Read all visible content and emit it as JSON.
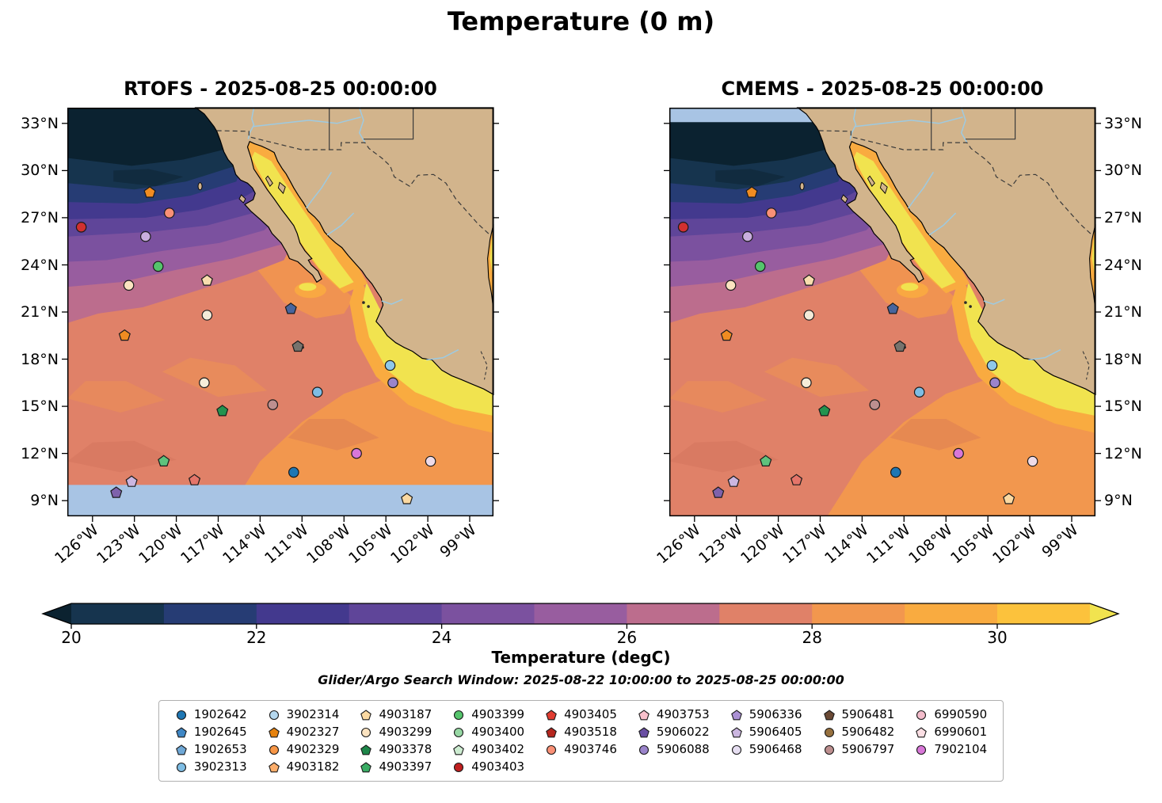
{
  "title": "Temperature (0 m)",
  "subtitle": "Glider/Argo Search Window: 2025-08-22 10:00:00 to 2025-08-25 00:00:00",
  "panels": [
    {
      "title": "RTOFS - 2025-08-25 00:00:00",
      "model": "RTOFS",
      "no_data_band": "bottom"
    },
    {
      "title": "CMEMS - 2025-08-25 00:00:00",
      "model": "CMEMS",
      "no_data_band": "top-left"
    }
  ],
  "axes": {
    "lat_ticks": [
      {
        "value": 33,
        "label": "33°N"
      },
      {
        "value": 30,
        "label": "30°N"
      },
      {
        "value": 27,
        "label": "27°N"
      },
      {
        "value": 24,
        "label": "24°N"
      },
      {
        "value": 21,
        "label": "21°N"
      },
      {
        "value": 18,
        "label": "18°N"
      },
      {
        "value": 15,
        "label": "15°N"
      },
      {
        "value": 12,
        "label": "12°N"
      },
      {
        "value": 9,
        "label": "9°N"
      }
    ],
    "lon_ticks": [
      {
        "value": -126,
        "label": "126°W"
      },
      {
        "value": -123,
        "label": "123°W"
      },
      {
        "value": -120,
        "label": "120°W"
      },
      {
        "value": -117,
        "label": "117°W"
      },
      {
        "value": -114,
        "label": "114°W"
      },
      {
        "value": -111,
        "label": "111°W"
      },
      {
        "value": -108,
        "label": "108°W"
      },
      {
        "value": -105,
        "label": "105°W"
      },
      {
        "value": -102,
        "label": "102°W"
      },
      {
        "value": -99,
        "label": "99°W"
      }
    ]
  },
  "chart_data": {
    "type": "heatmap",
    "title": "Temperature (0 m)",
    "lon_range": [
      -127.8,
      -97.3
    ],
    "lat_range": [
      8,
      34
    ],
    "colorbar": {
      "label": "Temperature (degC)",
      "min": 20,
      "max": 31,
      "tick_values": [
        20,
        22,
        24,
        26,
        28,
        30
      ],
      "band_colors": [
        "#0b2230",
        "#16344e",
        "#263c74",
        "#43398e",
        "#5f4599",
        "#7b519f",
        "#985d9f",
        "#bc6d8d",
        "#e08168",
        "#f2974e",
        "#f9ab40",
        "#fcc23c",
        "#f1e34f"
      ]
    },
    "markers": [
      {
        "lon": -126.8,
        "lat": 26.4,
        "shape": "circle",
        "color": "#d13030"
      },
      {
        "lon": -121.9,
        "lat": 28.6,
        "shape": "pentagon",
        "color": "#f08c21"
      },
      {
        "lon": -120.5,
        "lat": 27.3,
        "shape": "circle",
        "color": "#fa9076"
      },
      {
        "lon": -122.2,
        "lat": 25.8,
        "shape": "circle",
        "color": "#c9aede"
      },
      {
        "lon": -121.3,
        "lat": 23.9,
        "shape": "circle",
        "color": "#55c46c"
      },
      {
        "lon": -123.4,
        "lat": 22.7,
        "shape": "circle",
        "color": "#fbe3c0"
      },
      {
        "lon": -117.8,
        "lat": 23.0,
        "shape": "pentagon",
        "color": "#f8ddae"
      },
      {
        "lon": -117.8,
        "lat": 20.8,
        "shape": "circle",
        "color": "#f3ead8"
      },
      {
        "lon": -111.8,
        "lat": 21.2,
        "shape": "pentagon",
        "color": "#47659d"
      },
      {
        "lon": -123.7,
        "lat": 19.5,
        "shape": "pentagon",
        "color": "#f08c21"
      },
      {
        "lon": -111.3,
        "lat": 18.8,
        "shape": "pentagon",
        "color": "#77736d"
      },
      {
        "lon": -104.7,
        "lat": 17.6,
        "shape": "circle",
        "color": "#8fc8ea"
      },
      {
        "lon": -118.0,
        "lat": 16.5,
        "shape": "circle",
        "color": "#f6edd9"
      },
      {
        "lon": -104.5,
        "lat": 16.5,
        "shape": "circle",
        "color": "#9b84cb"
      },
      {
        "lon": -109.9,
        "lat": 15.9,
        "shape": "circle",
        "color": "#7ebde4"
      },
      {
        "lon": -113.1,
        "lat": 15.1,
        "shape": "circle",
        "color": "#bd8f8f"
      },
      {
        "lon": -116.7,
        "lat": 14.7,
        "shape": "pentagon",
        "color": "#23934f"
      },
      {
        "lon": -107.1,
        "lat": 12.0,
        "shape": "circle",
        "color": "#d877d8"
      },
      {
        "lon": -101.8,
        "lat": 11.5,
        "shape": "circle",
        "color": "#eedbe8"
      },
      {
        "lon": -120.9,
        "lat": 11.5,
        "shape": "pentagon",
        "color": "#5ec27d"
      },
      {
        "lon": -111.6,
        "lat": 10.8,
        "shape": "circle",
        "color": "#1f77b4"
      },
      {
        "lon": -118.7,
        "lat": 10.3,
        "shape": "pentagon",
        "color": "#e5756a"
      },
      {
        "lon": -123.2,
        "lat": 10.2,
        "shape": "pentagon",
        "color": "#cbb6e0"
      },
      {
        "lon": -124.3,
        "lat": 9.5,
        "shape": "pentagon",
        "color": "#7e62ab"
      },
      {
        "lon": -103.5,
        "lat": 9.1,
        "shape": "pentagon",
        "color": "#fbd9a2"
      }
    ]
  },
  "legend": {
    "columns": [
      [
        {
          "id": "1902642",
          "shape": "circle",
          "color": "#1f77b4"
        },
        {
          "id": "1902645",
          "shape": "pentagon",
          "color": "#3f87c5"
        },
        {
          "id": "1902653",
          "shape": "pentagon",
          "color": "#6fa8d6"
        },
        {
          "id": "3902313",
          "shape": "circle",
          "color": "#7ebde4"
        }
      ],
      [
        {
          "id": "3902314",
          "shape": "circle",
          "color": "#b5d8ef"
        },
        {
          "id": "4902327",
          "shape": "pentagon",
          "color": "#e6820e"
        },
        {
          "id": "4902329",
          "shape": "circle",
          "color": "#f79646"
        },
        {
          "id": "4903182",
          "shape": "pentagon",
          "color": "#fdae6b"
        }
      ],
      [
        {
          "id": "4903187",
          "shape": "pentagon",
          "color": "#fbd9a2"
        },
        {
          "id": "4903299",
          "shape": "circle",
          "color": "#fbe3c0"
        },
        {
          "id": "4903378",
          "shape": "pentagon",
          "color": "#1d8649"
        },
        {
          "id": "4903397",
          "shape": "pentagon",
          "color": "#3aac64"
        }
      ],
      [
        {
          "id": "4903399",
          "shape": "circle",
          "color": "#55c46c"
        },
        {
          "id": "4903400",
          "shape": "circle",
          "color": "#97d8a4"
        },
        {
          "id": "4903402",
          "shape": "pentagon",
          "color": "#cdecd1"
        },
        {
          "id": "4903403",
          "shape": "circle",
          "color": "#c01f1f"
        }
      ],
      [
        {
          "id": "4903405",
          "shape": "pentagon",
          "color": "#e03c31"
        },
        {
          "id": "4903518",
          "shape": "pentagon",
          "color": "#b5261e"
        },
        {
          "id": "4903746",
          "shape": "circle",
          "color": "#fa9076"
        }
      ],
      [
        {
          "id": "4903753",
          "shape": "pentagon",
          "color": "#f9c0cb"
        },
        {
          "id": "5906022",
          "shape": "pentagon",
          "color": "#6a4fa3"
        },
        {
          "id": "5906088",
          "shape": "circle",
          "color": "#9b84cb"
        }
      ],
      [
        {
          "id": "5906336",
          "shape": "pentagon",
          "color": "#ab91d4"
        },
        {
          "id": "5906405",
          "shape": "pentagon",
          "color": "#cbb6e0"
        },
        {
          "id": "5906468",
          "shape": "circle",
          "color": "#e6def1"
        }
      ],
      [
        {
          "id": "5906481",
          "shape": "pentagon",
          "color": "#6b4a35"
        },
        {
          "id": "5906482",
          "shape": "circle",
          "color": "#97713f"
        },
        {
          "id": "5906797",
          "shape": "circle",
          "color": "#bd8f8f"
        }
      ],
      [
        {
          "id": "6990590",
          "shape": "circle",
          "color": "#f3bccb"
        },
        {
          "id": "6990601",
          "shape": "pentagon",
          "color": "#fbdfe4"
        },
        {
          "id": "7902104",
          "shape": "circle",
          "color": "#d877d8"
        }
      ]
    ]
  },
  "palette": {
    "land": "#d2b48c",
    "coastline": "#000000",
    "no_data": "#a8c4e4",
    "river": "#9ecae1",
    "border": "#3a3a3a",
    "swirl_warm": "#f2974e",
    "swirl_deep": "#d0705a",
    "marker_edge": "#1a1a1a"
  }
}
